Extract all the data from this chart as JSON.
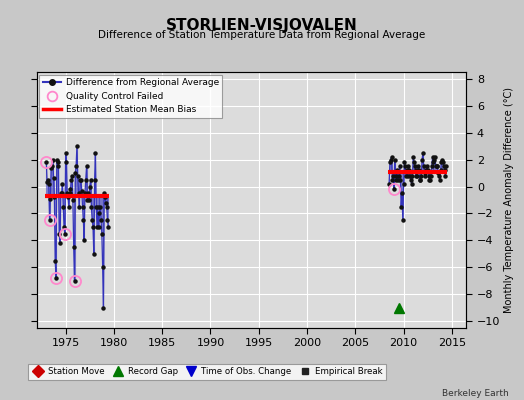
{
  "title": "STORLIEN-VISJOVALEN",
  "subtitle": "Difference of Station Temperature Data from Regional Average",
  "ylabel": "Monthly Temperature Anomaly Difference (°C)",
  "credit": "Berkeley Earth",
  "xlim": [
    1972.0,
    2016.5
  ],
  "ylim": [
    -10.5,
    8.5
  ],
  "yticks": [
    -10,
    -8,
    -6,
    -4,
    -2,
    0,
    2,
    4,
    6,
    8
  ],
  "xticks": [
    1975,
    1980,
    1985,
    1990,
    1995,
    2000,
    2005,
    2010,
    2015
  ],
  "bg_color": "#c8c8c8",
  "plot_bg_color": "#dcdcdc",
  "grid_color": "#ffffff",
  "segment1_x_start": 1972.9,
  "segment1_x_end": 1979.5,
  "segment2_x_start": 2008.4,
  "segment2_x_end": 2014.5,
  "bias1": -0.7,
  "bias2": 1.1,
  "record_gap_x": 2009.5,
  "record_gap_y": -9.0,
  "seg1_data": [
    [
      1973.0,
      1.8
    ],
    [
      1973.083,
      0.3
    ],
    [
      1973.167,
      0.5
    ],
    [
      1973.25,
      0.2
    ],
    [
      1973.333,
      -2.5
    ],
    [
      1973.417,
      -0.9
    ],
    [
      1973.5,
      1.4
    ],
    [
      1973.583,
      1.5
    ],
    [
      1973.667,
      2.0
    ],
    [
      1973.75,
      0.6
    ],
    [
      1973.833,
      -0.8
    ],
    [
      1973.917,
      -5.5
    ],
    [
      1974.0,
      -6.8
    ],
    [
      1974.083,
      2.0
    ],
    [
      1974.167,
      1.8
    ],
    [
      1974.25,
      1.5
    ],
    [
      1974.333,
      -3.5
    ],
    [
      1974.417,
      -4.2
    ],
    [
      1974.5,
      -0.5
    ],
    [
      1974.583,
      -0.5
    ],
    [
      1974.667,
      0.2
    ],
    [
      1974.75,
      -1.5
    ],
    [
      1974.833,
      -3.0
    ],
    [
      1974.917,
      -3.5
    ],
    [
      1975.0,
      2.5
    ],
    [
      1975.083,
      1.8
    ],
    [
      1975.167,
      -0.5
    ],
    [
      1975.25,
      -0.8
    ],
    [
      1975.333,
      -1.5
    ],
    [
      1975.417,
      -0.5
    ],
    [
      1975.5,
      -0.2
    ],
    [
      1975.583,
      0.5
    ],
    [
      1975.667,
      0.8
    ],
    [
      1975.75,
      -1.0
    ],
    [
      1975.833,
      -4.5
    ],
    [
      1975.917,
      -7.0
    ],
    [
      1976.0,
      1.0
    ],
    [
      1976.083,
      1.5
    ],
    [
      1976.167,
      3.0
    ],
    [
      1976.25,
      0.8
    ],
    [
      1976.333,
      -0.5
    ],
    [
      1976.417,
      -1.5
    ],
    [
      1976.5,
      0.5
    ],
    [
      1976.583,
      0.5
    ],
    [
      1976.667,
      -0.3
    ],
    [
      1976.75,
      -1.5
    ],
    [
      1976.833,
      -2.5
    ],
    [
      1976.917,
      -4.0
    ],
    [
      1977.0,
      -0.5
    ],
    [
      1977.083,
      0.5
    ],
    [
      1977.167,
      1.5
    ],
    [
      1977.25,
      -1.0
    ],
    [
      1977.333,
      -0.5
    ],
    [
      1977.417,
      -1.0
    ],
    [
      1977.5,
      0.0
    ],
    [
      1977.583,
      0.5
    ],
    [
      1977.667,
      -1.5
    ],
    [
      1977.75,
      -2.5
    ],
    [
      1977.833,
      -3.0
    ],
    [
      1977.917,
      -5.0
    ],
    [
      1978.0,
      0.5
    ],
    [
      1978.083,
      2.5
    ],
    [
      1978.167,
      -1.5
    ],
    [
      1978.25,
      -3.0
    ],
    [
      1978.333,
      -1.5
    ],
    [
      1978.417,
      -3.0
    ],
    [
      1978.5,
      -2.0
    ],
    [
      1978.583,
      -1.5
    ],
    [
      1978.667,
      -2.5
    ],
    [
      1978.75,
      -3.5
    ],
    [
      1978.833,
      -6.0
    ],
    [
      1978.917,
      -9.0
    ],
    [
      1979.0,
      -0.5
    ],
    [
      1979.083,
      -0.8
    ],
    [
      1979.167,
      -1.2
    ],
    [
      1979.25,
      -1.5
    ],
    [
      1979.333,
      -2.5
    ],
    [
      1979.417,
      -3.0
    ]
  ],
  "seg1_qc_failed": [
    [
      1973.0,
      1.8
    ],
    [
      1973.333,
      -2.5
    ],
    [
      1974.917,
      -3.5
    ],
    [
      1975.917,
      -7.0
    ],
    [
      1974.0,
      -6.8
    ]
  ],
  "seg2_data": [
    [
      2008.5,
      0.2
    ],
    [
      2008.583,
      1.8
    ],
    [
      2008.667,
      2.0
    ],
    [
      2008.75,
      2.2
    ],
    [
      2008.833,
      0.5
    ],
    [
      2008.917,
      0.8
    ],
    [
      2009.0,
      -0.2
    ],
    [
      2009.083,
      2.0
    ],
    [
      2009.167,
      0.8
    ],
    [
      2009.25,
      0.5
    ],
    [
      2009.333,
      1.2
    ],
    [
      2009.417,
      0.5
    ],
    [
      2009.5,
      0.8
    ],
    [
      2009.583,
      1.5
    ],
    [
      2009.667,
      0.5
    ],
    [
      2009.75,
      -1.5
    ],
    [
      2009.833,
      -0.5
    ],
    [
      2009.917,
      -2.5
    ],
    [
      2010.0,
      0.2
    ],
    [
      2010.083,
      1.8
    ],
    [
      2010.167,
      1.5
    ],
    [
      2010.25,
      0.8
    ],
    [
      2010.333,
      1.2
    ],
    [
      2010.417,
      0.8
    ],
    [
      2010.5,
      1.5
    ],
    [
      2010.583,
      1.2
    ],
    [
      2010.667,
      0.8
    ],
    [
      2010.75,
      0.5
    ],
    [
      2010.833,
      0.2
    ],
    [
      2010.917,
      0.8
    ],
    [
      2011.0,
      2.2
    ],
    [
      2011.083,
      1.8
    ],
    [
      2011.167,
      1.5
    ],
    [
      2011.25,
      0.8
    ],
    [
      2011.333,
      1.2
    ],
    [
      2011.417,
      0.8
    ],
    [
      2011.5,
      1.5
    ],
    [
      2011.583,
      1.2
    ],
    [
      2011.667,
      0.5
    ],
    [
      2011.75,
      0.5
    ],
    [
      2011.833,
      0.8
    ],
    [
      2011.917,
      2.0
    ],
    [
      2012.0,
      2.5
    ],
    [
      2012.083,
      1.5
    ],
    [
      2012.167,
      1.0
    ],
    [
      2012.25,
      0.8
    ],
    [
      2012.333,
      1.2
    ],
    [
      2012.417,
      1.5
    ],
    [
      2012.5,
      1.2
    ],
    [
      2012.583,
      0.8
    ],
    [
      2012.667,
      0.5
    ],
    [
      2012.75,
      0.5
    ],
    [
      2012.833,
      0.8
    ],
    [
      2012.917,
      1.5
    ],
    [
      2013.0,
      2.2
    ],
    [
      2013.083,
      1.8
    ],
    [
      2013.167,
      2.0
    ],
    [
      2013.25,
      2.2
    ],
    [
      2013.333,
      1.5
    ],
    [
      2013.417,
      1.5
    ],
    [
      2013.5,
      1.5
    ],
    [
      2013.583,
      1.0
    ],
    [
      2013.667,
      0.8
    ],
    [
      2013.75,
      0.5
    ],
    [
      2013.833,
      1.2
    ],
    [
      2013.917,
      1.8
    ],
    [
      2014.0,
      2.0
    ],
    [
      2014.083,
      1.8
    ],
    [
      2014.167,
      1.5
    ],
    [
      2014.25,
      1.2
    ],
    [
      2014.333,
      0.8
    ],
    [
      2014.417,
      1.5
    ]
  ],
  "seg2_qc_failed": [
    [
      2009.0,
      -0.2
    ]
  ],
  "line_color": "#3333bb",
  "dot_color": "#111111",
  "qc_color": "#ff88cc",
  "bias_color": "#ff0000",
  "station_move_color": "#cc0000",
  "record_gap_color": "#007700",
  "time_obs_color": "#0000cc",
  "empirical_break_color": "#222222"
}
